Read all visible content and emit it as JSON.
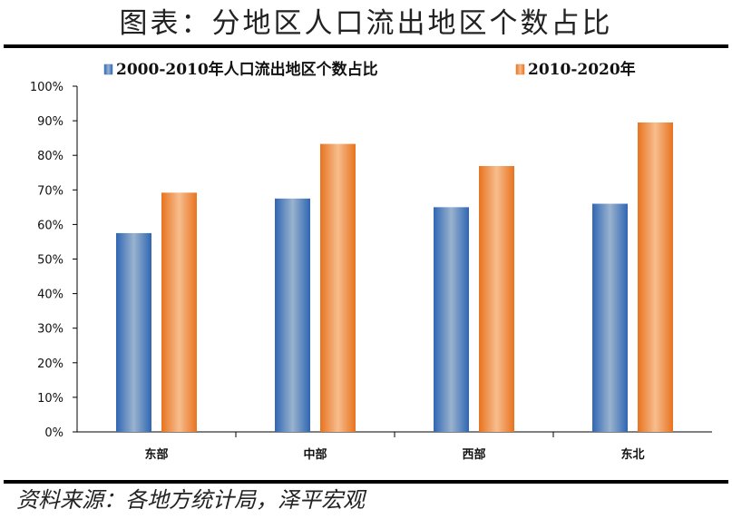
{
  "page_title": "图表：分地区人口流出地区个数占比",
  "source": "资料来源：各地方统计局，泽平宏观",
  "colors": {
    "series1": "#4a7fc1",
    "series2": "#ee8433"
  },
  "chart_data": {
    "type": "bar",
    "title": "",
    "xlabel": "",
    "ylabel": "",
    "categories": [
      "东部",
      "中部",
      "西部",
      "东北"
    ],
    "series": [
      {
        "name": "2000-2010年人口流出地区个数占比",
        "values": [
          57.5,
          67.5,
          65,
          66
        ]
      },
      {
        "name": "2010-2020年",
        "values": [
          69.2,
          83.3,
          76.9,
          89.5
        ]
      }
    ],
    "ylim": [
      0,
      100
    ],
    "yticks": [
      "0%",
      "10%",
      "20%",
      "30%",
      "40%",
      "50%",
      "60%",
      "70%",
      "80%",
      "90%",
      "100%"
    ],
    "grid": false,
    "legend": "top"
  }
}
